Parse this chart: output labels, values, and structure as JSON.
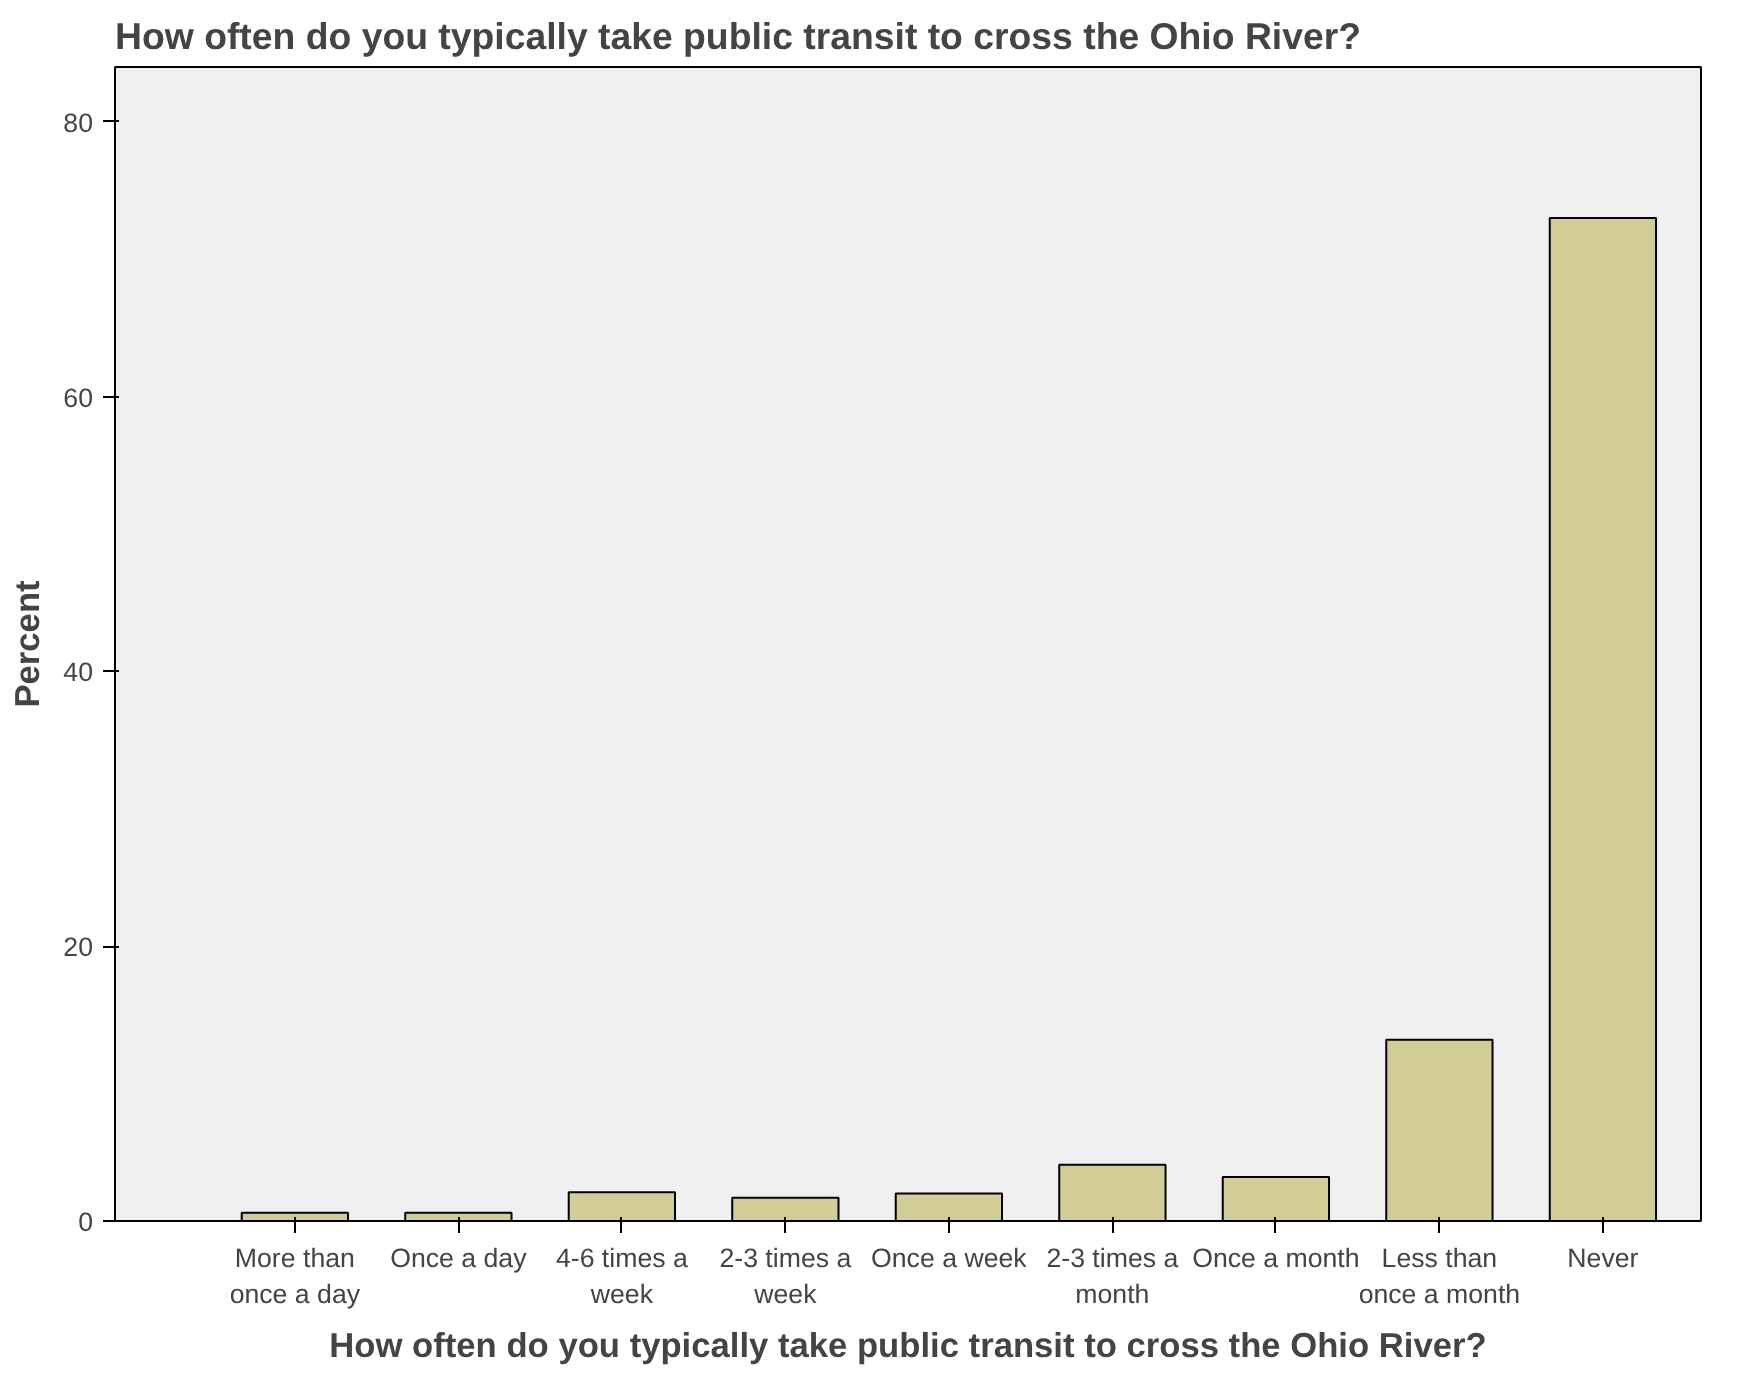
{
  "chart_data": {
    "type": "bar",
    "title": "How often do you typically take public transit to cross the Ohio River?",
    "xlabel": "How often do you typically take public transit to cross the Ohio River?",
    "ylabel": "Percent",
    "categories": [
      "More than once a day",
      "Once a day",
      "4-6 times a week",
      "2-3 times a week",
      "Once a week",
      "2-3 times a month",
      "Once a month",
      "Less than once a month",
      "Never"
    ],
    "values": [
      0.6,
      0.6,
      2.1,
      1.7,
      2.0,
      4.1,
      3.2,
      13.2,
      73.0
    ],
    "color": "#d2cd96",
    "ylim": [
      0,
      84
    ],
    "yticks": [
      0,
      20,
      40,
      60,
      80
    ],
    "grid": false
  }
}
